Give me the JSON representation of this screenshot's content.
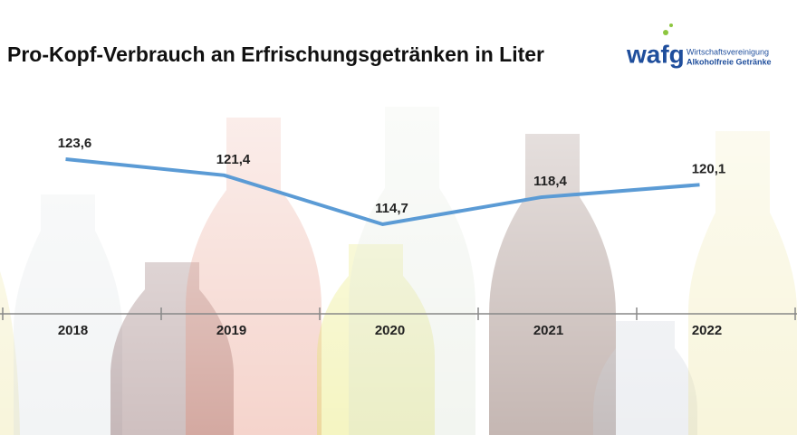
{
  "chart_data": {
    "type": "line",
    "title": "Pro-Kopf-Verbrauch an Erfrischungsgetränken in Liter",
    "categories": [
      "2018",
      "2019",
      "2020",
      "2021",
      "2022"
    ],
    "values": [
      123.6,
      121.4,
      114.7,
      118.4,
      120.1
    ],
    "value_labels": [
      "123,6",
      "121,4",
      "114,7",
      "118,4",
      "120,1"
    ],
    "color": "#5b9bd5"
  },
  "logo": {
    "mark": "wafg",
    "line1": "Wirtschaftsvereinigung",
    "line2": "Alkoholfreie Getränke"
  }
}
